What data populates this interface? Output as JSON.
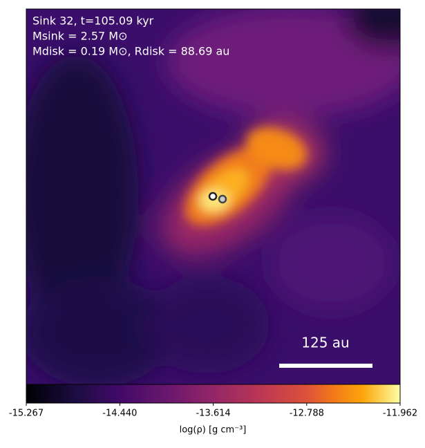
{
  "chart_data": {
    "type": "image",
    "annotations": [
      "Sink 32, t=105.09 kyr",
      "Msink = 2.57 M⊙",
      "Mdisk = 0.19 M⊙, Rdisk = 88.69 au"
    ],
    "scale_bar": "125 au",
    "colorbar": {
      "label": "log(ρ) [g cm⁻³]",
      "clim": [
        -15.267,
        -11.962
      ],
      "ticks": [
        -15.267,
        {
          "value": -14.44,
          "label": "-14.440"
        },
        -13.614,
        -12.788,
        -11.962
      ]
    }
  }
}
